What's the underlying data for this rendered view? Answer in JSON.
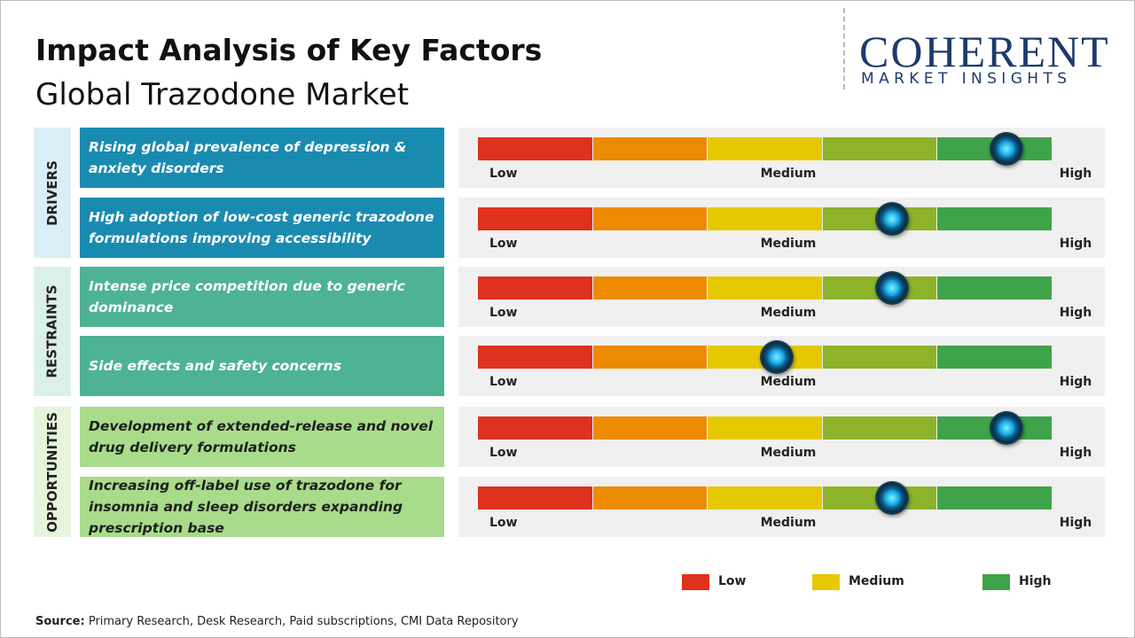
{
  "header": {
    "title": "Impact Analysis of Key Factors",
    "subtitle": "Global Trazodone Market"
  },
  "logo": {
    "name": "COHERENT",
    "tagline": "MARKET INSIGHTS"
  },
  "scale": {
    "labels": [
      "Low",
      "Medium",
      "High"
    ],
    "colors": [
      "#e0301e",
      "#ec8a00",
      "#e6c800",
      "#8db32a",
      "#3fa34a"
    ]
  },
  "groups": [
    {
      "name": "DRIVERS",
      "color": "#1a8bb0",
      "light_color": "#d9eef6",
      "text_color": "#ffffff",
      "factors": [
        {
          "text": "Rising global prevalence of depression & anxiety disorders",
          "level": 4.6
        },
        {
          "text": "High adoption of low-cost generic trazodone formulations improving accessibility",
          "level": 3.6
        }
      ]
    },
    {
      "name": "RESTRAINTS",
      "color": "#4db394",
      "light_color": "#dcf0ea",
      "text_color": "#ffffff",
      "factors": [
        {
          "text": "Intense price competition due to generic dominance",
          "level": 3.6
        },
        {
          "text": "Side effects and safety concerns",
          "level": 2.6
        }
      ]
    },
    {
      "name": "OPPORTUNITIES",
      "color": "#a8db8a",
      "light_color": "#e6f4dc",
      "text_color": "#1e1e1e",
      "factors": [
        {
          "text": "Development of extended-release and novel drug delivery formulations",
          "level": 4.6
        },
        {
          "text": "Increasing off-label use of trazodone for insomnia and sleep disorders expanding prescription base",
          "level": 3.6
        }
      ]
    }
  ],
  "legend": [
    {
      "label": "Low",
      "color": "#e0301e"
    },
    {
      "label": "Medium",
      "color": "#e6c800"
    },
    {
      "label": "High",
      "color": "#3fa34a"
    }
  ],
  "source": {
    "label": "Source:",
    "text": "Primary Research, Desk Research, Paid subscriptions, CMI Data Repository"
  }
}
